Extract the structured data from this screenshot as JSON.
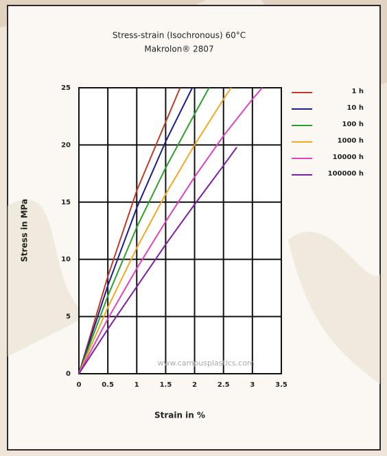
{
  "chart_data": {
    "type": "line",
    "title": "Stress-strain (Isochronous) 60°C",
    "subtitle": "Makrolon® 2807",
    "x_label": "Strain in %",
    "y_label": "Stress in MPa",
    "annotation": "www.campusplastics.com",
    "xlim": [
      0,
      3.5
    ],
    "ylim": [
      0,
      25
    ],
    "xticks": [
      0,
      0.5,
      1,
      1.5,
      2,
      2.5,
      3,
      3.5
    ],
    "yticks": [
      0,
      5,
      10,
      15,
      20,
      25
    ],
    "grid": true,
    "legend": "right",
    "series": [
      {
        "name": "1 h",
        "color": "#c0392b",
        "x": [
          0,
          0.5,
          1,
          1.5,
          1.75
        ],
        "values": [
          0,
          8.5,
          16,
          22,
          25
        ]
      },
      {
        "name": "10 h",
        "color": "#1c1c8a",
        "x": [
          0,
          0.5,
          1,
          1.5,
          1.96
        ],
        "values": [
          0,
          7.7,
          14.5,
          20.3,
          25
        ]
      },
      {
        "name": "100 h",
        "color": "#2ca02c",
        "x": [
          0,
          0.5,
          1,
          1.5,
          2,
          2.25
        ],
        "values": [
          0,
          6.8,
          12.8,
          18,
          22.7,
          25
        ]
      },
      {
        "name": "1000 h",
        "color": "#f5a623",
        "x": [
          0,
          0.5,
          1,
          1.5,
          2,
          2.5,
          2.63
        ],
        "values": [
          0,
          5.8,
          11,
          15.7,
          20,
          24,
          25
        ]
      },
      {
        "name": "10000 h",
        "color": "#e040c0",
        "x": [
          0,
          0.5,
          1,
          1.5,
          2,
          2.5,
          3,
          3.17
        ],
        "values": [
          0,
          4.8,
          9.2,
          13.3,
          17.2,
          20.8,
          24,
          25
        ]
      },
      {
        "name": "100000 h",
        "color": "#7b1fa2",
        "x": [
          0,
          0.5,
          1,
          1.5,
          2,
          2.5,
          2.73
        ],
        "values": [
          0,
          3.9,
          7.6,
          11.3,
          14.8,
          18.2,
          19.8
        ]
      }
    ]
  }
}
